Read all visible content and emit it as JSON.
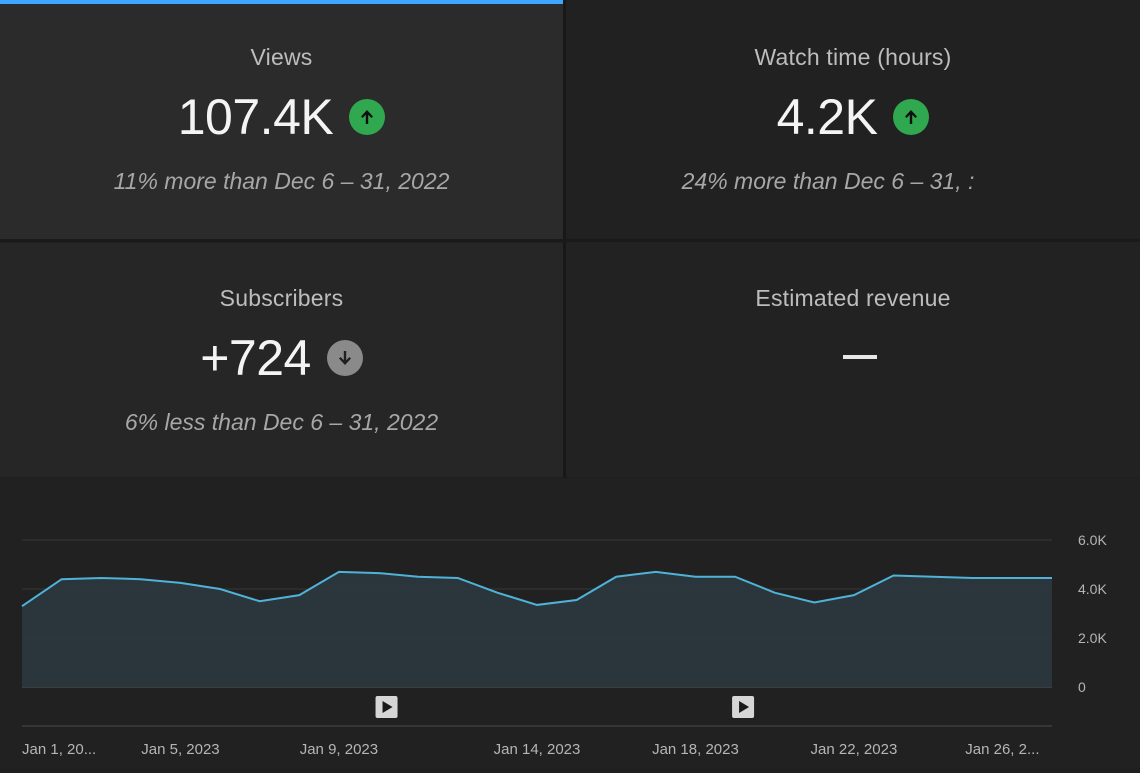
{
  "metrics": {
    "views": {
      "title": "Views",
      "value": "107.4K",
      "trend": "up",
      "comparison": "11% more than Dec 6 – 31, 2022"
    },
    "watch_time": {
      "title": "Watch time (hours)",
      "value": "4.2K",
      "trend": "up",
      "comparison": "24% more than Dec 6 – 31, :"
    },
    "subscribers": {
      "title": "Subscribers",
      "value": "+724",
      "trend": "down",
      "comparison": "6% less than Dec 6 – 31, 2022"
    },
    "revenue": {
      "title": "Estimated revenue",
      "value": "—"
    }
  },
  "colors": {
    "accent": "#3ea6ff",
    "trend_up": "#2fa84f",
    "trend_down": "#8a8a8a",
    "line": "#4fb3d9",
    "area": "#2c383e"
  },
  "chart_data": {
    "type": "area",
    "x": [
      "Jan 1",
      "Jan 2",
      "Jan 3",
      "Jan 4",
      "Jan 5",
      "Jan 6",
      "Jan 7",
      "Jan 8",
      "Jan 9",
      "Jan 10",
      "Jan 11",
      "Jan 12",
      "Jan 13",
      "Jan 14",
      "Jan 15",
      "Jan 16",
      "Jan 17",
      "Jan 18",
      "Jan 19",
      "Jan 20",
      "Jan 21",
      "Jan 22",
      "Jan 23",
      "Jan 24",
      "Jan 25",
      "Jan 26",
      "Jan 27"
    ],
    "values": [
      3300,
      4400,
      4450,
      4400,
      4250,
      4000,
      3500,
      3750,
      4700,
      4650,
      4500,
      4450,
      3850,
      3350,
      3550,
      4500,
      4700,
      4500,
      4500,
      3850,
      3450,
      3750,
      4550,
      4500,
      4450,
      4450,
      4450
    ],
    "ylim": [
      0,
      6000
    ],
    "y_ticks": [
      {
        "value": 6000,
        "label": "6.0K"
      },
      {
        "value": 4000,
        "label": "4.0K"
      },
      {
        "value": 2000,
        "label": "2.0K"
      },
      {
        "value": 0,
        "label": "0"
      }
    ],
    "x_ticks": [
      {
        "index": 0,
        "label": "Jan 1, 20..."
      },
      {
        "index": 4,
        "label": "Jan 5, 2023"
      },
      {
        "index": 8,
        "label": "Jan 9, 2023"
      },
      {
        "index": 13,
        "label": "Jan 14, 2023"
      },
      {
        "index": 17,
        "label": "Jan 18, 2023"
      },
      {
        "index": 21,
        "label": "Jan 22, 2023"
      },
      {
        "index": 25,
        "label": "Jan 26, 2..."
      }
    ],
    "video_markers": [
      9,
      18
    ],
    "grid": true,
    "legend": "none"
  }
}
